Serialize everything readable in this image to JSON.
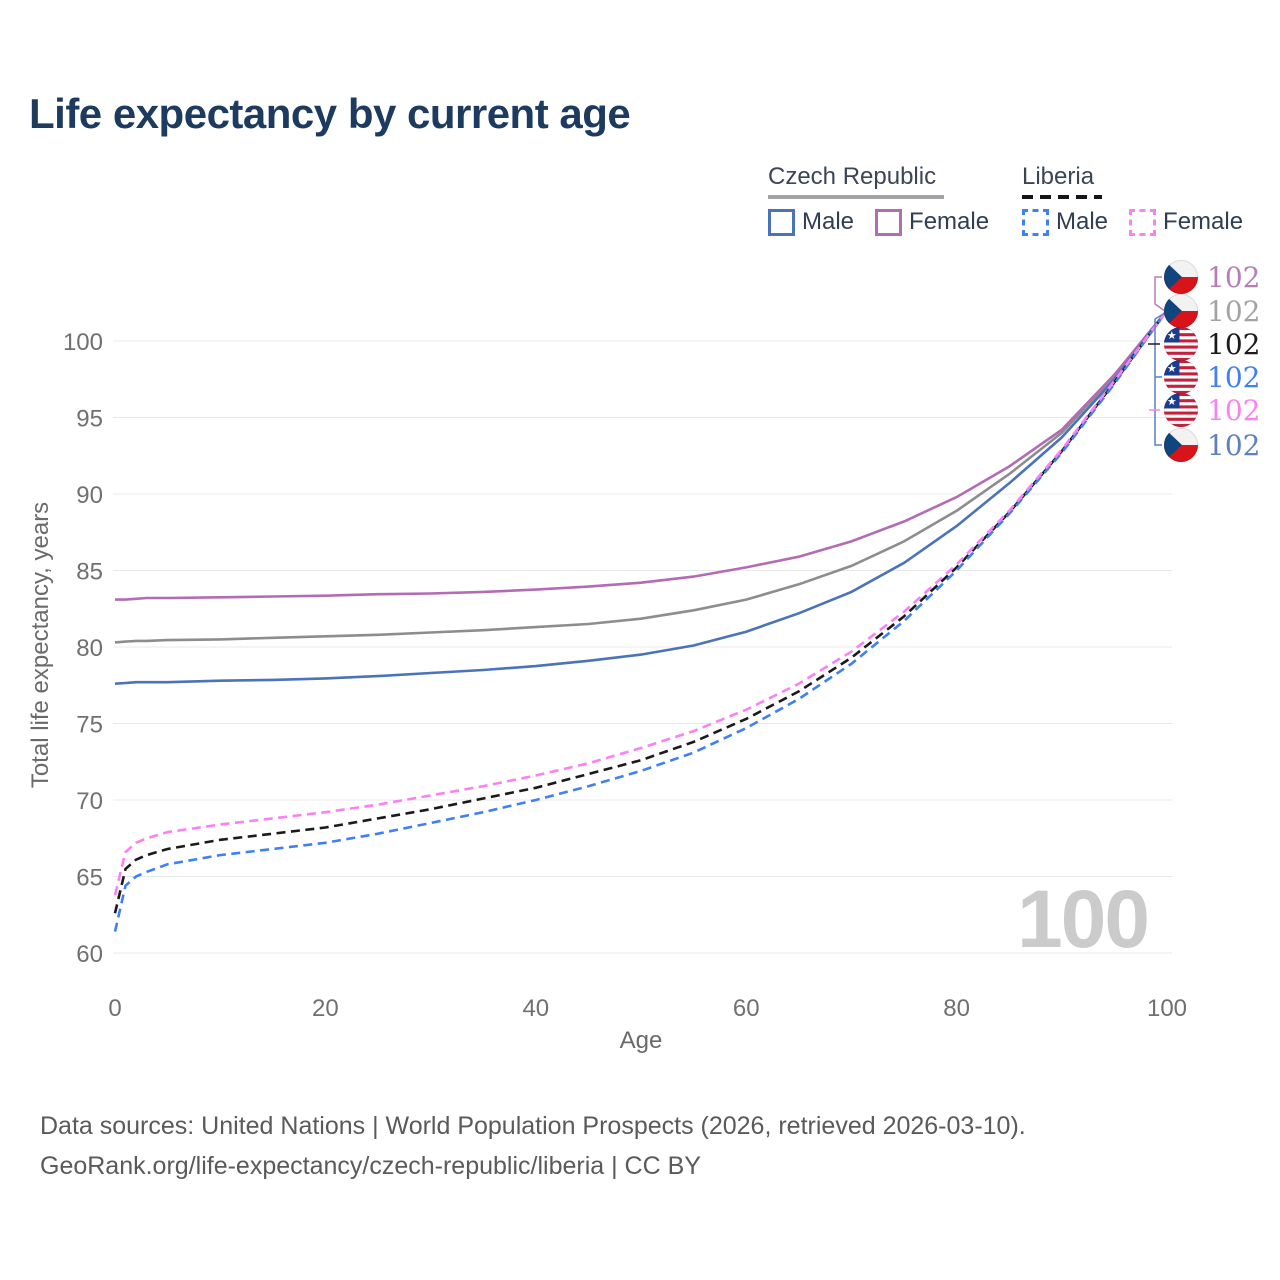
{
  "title": "Life expectancy by current age",
  "watermark": "100",
  "legend": {
    "groups": [
      {
        "country": "Czech Republic",
        "line_style": "solid",
        "items": [
          {
            "label": "Male",
            "color": "#4a73b9"
          },
          {
            "label": "Female",
            "color": "#b36cb3"
          }
        ]
      },
      {
        "country": "Liberia",
        "line_style": "dashed",
        "items": [
          {
            "label": "Male",
            "color": "#3f80f3"
          },
          {
            "label": "Female",
            "color": "#fb80f3"
          }
        ]
      }
    ]
  },
  "y_axis": {
    "title": "Total life expectancy, years",
    "ticks": [
      60,
      65,
      70,
      75,
      80,
      85,
      90,
      95,
      100
    ]
  },
  "x_axis": {
    "title": "Age",
    "ticks": [
      0,
      20,
      40,
      60,
      80,
      100
    ]
  },
  "end_labels": [
    {
      "flag": "czech",
      "value": "102",
      "color": "#b57fb5",
      "series": "Czech Republic Female"
    },
    {
      "flag": "czech",
      "value": "102",
      "color": "#a3a3a3",
      "series": "Czech Republic Both sexes"
    },
    {
      "flag": "liberia",
      "value": "102",
      "color": "#1a1a1a",
      "series": "Liberia Both sexes"
    },
    {
      "flag": "liberia",
      "value": "102",
      "color": "#3f80f3",
      "series": "Liberia Male"
    },
    {
      "flag": "liberia",
      "value": "102",
      "color": "#fb80f3",
      "series": "Liberia Female"
    },
    {
      "flag": "czech",
      "value": "102",
      "color": "#5c80c2",
      "series": "Czech Republic Male"
    }
  ],
  "footer": {
    "line1": "Data sources: United Nations | World Population Prospects (2026, retrieved 2026-03-10).",
    "line2": "GeoRank.org/life-expectancy/czech-republic/liberia | CC BY"
  },
  "chart_data": {
    "type": "line",
    "title": "Life expectancy by current age",
    "xlabel": "Age",
    "ylabel": "Total life expectancy, years",
    "xlim": [
      0,
      100
    ],
    "ylim": [
      60,
      100
    ],
    "grid": "horizontal",
    "legend_position": "top-right",
    "x": [
      0,
      1,
      2,
      3,
      5,
      10,
      15,
      20,
      25,
      30,
      35,
      40,
      45,
      50,
      55,
      60,
      65,
      70,
      75,
      80,
      85,
      90,
      95,
      100
    ],
    "series": [
      {
        "id": "czech-all",
        "name": "Czech Republic Both sexes",
        "color": "#8d8d8d",
        "dashed": false,
        "values": [
          80.3,
          80.35,
          80.4,
          80.4,
          80.45,
          80.5,
          80.6,
          80.7,
          80.8,
          80.95,
          81.1,
          81.3,
          81.5,
          81.85,
          82.4,
          83.1,
          84.1,
          85.3,
          86.9,
          88.9,
          91.3,
          94.0,
          97.7,
          102
        ]
      },
      {
        "id": "czech-female",
        "name": "Czech Republic Female",
        "color": "#b36cb3",
        "dashed": false,
        "values": [
          83.1,
          83.1,
          83.15,
          83.2,
          83.2,
          83.25,
          83.3,
          83.35,
          83.45,
          83.5,
          83.6,
          83.75,
          83.95,
          84.2,
          84.6,
          85.2,
          85.9,
          86.9,
          88.2,
          89.8,
          91.8,
          94.2,
          97.8,
          102
        ]
      },
      {
        "id": "czech-male",
        "name": "Czech Republic Male",
        "color": "#4a73b9",
        "dashed": false,
        "values": [
          77.6,
          77.65,
          77.7,
          77.7,
          77.7,
          77.8,
          77.85,
          77.95,
          78.1,
          78.3,
          78.5,
          78.75,
          79.1,
          79.5,
          80.1,
          81.0,
          82.2,
          83.6,
          85.5,
          87.9,
          90.7,
          93.7,
          97.5,
          102
        ]
      },
      {
        "id": "liberia-all",
        "name": "Liberia Both sexes",
        "color": "#1a1a1a",
        "dashed": true,
        "values": [
          62.6,
          65.5,
          66.1,
          66.4,
          66.8,
          67.4,
          67.8,
          68.2,
          68.8,
          69.4,
          70.1,
          70.8,
          71.7,
          72.6,
          73.8,
          75.3,
          77.1,
          79.3,
          82.0,
          85.2,
          88.8,
          92.8,
          97.3,
          102
        ]
      },
      {
        "id": "liberia-male",
        "name": "Liberia Male",
        "color": "#3f80f3",
        "dashed": true,
        "values": [
          61.4,
          64.4,
          65.0,
          65.3,
          65.8,
          66.4,
          66.8,
          67.2,
          67.8,
          68.5,
          69.2,
          70.0,
          70.9,
          71.9,
          73.1,
          74.7,
          76.6,
          78.9,
          81.7,
          85.0,
          88.7,
          92.7,
          97.2,
          102
        ]
      },
      {
        "id": "liberia-female",
        "name": "Liberia Female",
        "color": "#fb80f3",
        "dashed": true,
        "values": [
          63.8,
          66.6,
          67.2,
          67.5,
          67.9,
          68.4,
          68.8,
          69.2,
          69.7,
          70.3,
          70.9,
          71.6,
          72.4,
          73.4,
          74.5,
          75.9,
          77.6,
          79.7,
          82.3,
          85.4,
          88.9,
          92.9,
          97.4,
          102
        ]
      }
    ]
  }
}
